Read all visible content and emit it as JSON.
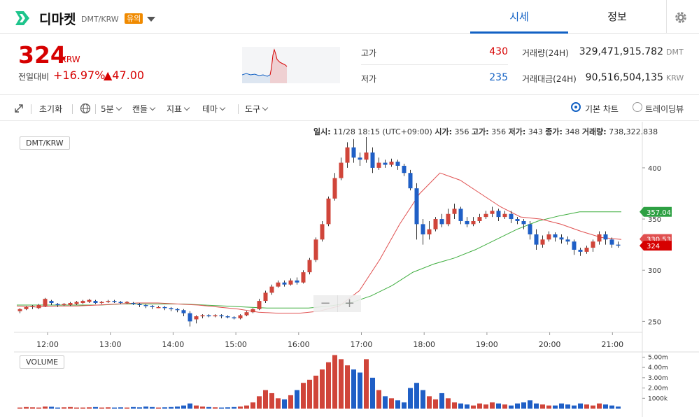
{
  "header": {
    "coin_name": "디마켓",
    "pair": "DMT/KRW",
    "warning_badge": "유의",
    "tabs": [
      {
        "label": "시세",
        "active": true
      },
      {
        "label": "정보",
        "active": false
      }
    ],
    "accent_color": "#1261c4",
    "logo_color": "#1ec48c"
  },
  "summary": {
    "price": "324",
    "price_unit": "KRW",
    "change_label": "전일대비",
    "change_pct": "+16.97%",
    "change_abs": "▲47.00",
    "high_label": "고가",
    "high_value": "430",
    "low_label": "저가",
    "low_value": "235",
    "volume_label": "거래량(24H)",
    "volume_value": "329,471,915.782",
    "volume_unit": "DMT",
    "amount_label": "거래대금(24H)",
    "amount_value": "90,516,504,135",
    "amount_unit": "KRW",
    "up_color": "#d60000",
    "down_color": "#1261c4"
  },
  "toolbar": {
    "reset": "초기화",
    "interval": "5분",
    "candle": "캔들",
    "indicator": "지표",
    "theme": "테마",
    "tools": "도구",
    "basic_chart": "기본 차트",
    "tradingview": "트레이딩뷰"
  },
  "info": {
    "date_label": "일시:",
    "date_value": "11/28 18:15 (UTC+09:00)",
    "open_label": "시가:",
    "open_value": "356",
    "high_label": "고가:",
    "high_value": "356",
    "low_label": "저가:",
    "low_value": "343",
    "close_label": "종가:",
    "close_value": "348",
    "vol_label": "거래량:",
    "vol_value": "738,322.838"
  },
  "chart_data": {
    "type": "candlestick",
    "pair_label": "DMT/KRW",
    "volume_label": "VOLUME",
    "x_ticks": [
      "12:00",
      "13:00",
      "14:00",
      "15:00",
      "16:00",
      "17:00",
      "18:00",
      "19:00",
      "20:00",
      "21:00"
    ],
    "y_ticks": [
      250,
      300,
      350,
      400
    ],
    "ylim": [
      240,
      430
    ],
    "volume_ticks": [
      "5.00m",
      "4.00m",
      "3.00m",
      "2.00m",
      "1000k"
    ],
    "volume_ylim": [
      0,
      5300000
    ],
    "price_tags": [
      {
        "label": "357.04",
        "value": 357.04,
        "color": "#2ea043"
      },
      {
        "label": "330.533",
        "value": 330.5,
        "color": "#e05050"
      },
      {
        "label": "324",
        "value": 324,
        "color": "#d60000"
      }
    ],
    "ma_fast": [
      265,
      264,
      265,
      265,
      266,
      267,
      268,
      268,
      267,
      266,
      264,
      262,
      259,
      258,
      258,
      260,
      265,
      280,
      310,
      345,
      375,
      395,
      388,
      375,
      362,
      352,
      350,
      345,
      338,
      332,
      330
    ],
    "ma_slow": [
      266,
      266,
      266,
      266,
      266,
      267,
      267,
      267,
      267,
      266,
      265,
      264,
      263,
      263,
      263,
      265,
      268,
      275,
      285,
      298,
      306,
      312,
      320,
      330,
      340,
      348,
      353,
      357,
      357
    ],
    "candles": [
      [
        260,
        262,
        258,
        263
      ],
      [
        262,
        264,
        261,
        265
      ],
      [
        264,
        265,
        262,
        266
      ],
      [
        263,
        266,
        262,
        267
      ],
      [
        265,
        272,
        264,
        273
      ],
      [
        270,
        268,
        266,
        271
      ],
      [
        267,
        266,
        264,
        268
      ],
      [
        266,
        267,
        265,
        268
      ],
      [
        266,
        268,
        265,
        269
      ],
      [
        267,
        269,
        266,
        270
      ],
      [
        268,
        270,
        267,
        271
      ],
      [
        269,
        271,
        268,
        272
      ],
      [
        270,
        268,
        267,
        271
      ],
      [
        268,
        269,
        267,
        270
      ],
      [
        269,
        270,
        268,
        271
      ],
      [
        270,
        269,
        268,
        271
      ],
      [
        269,
        268,
        267,
        270
      ],
      [
        268,
        269,
        267,
        270
      ],
      [
        268,
        267,
        266,
        269
      ],
      [
        267,
        266,
        264,
        268
      ],
      [
        266,
        265,
        263,
        267
      ],
      [
        265,
        264,
        262,
        266
      ],
      [
        264,
        264,
        263,
        265
      ],
      [
        264,
        263,
        261,
        265
      ],
      [
        263,
        262,
        260,
        264
      ],
      [
        262,
        261,
        259,
        263
      ],
      [
        261,
        258,
        255,
        262
      ],
      [
        258,
        250,
        245,
        260
      ],
      [
        252,
        255,
        248,
        256
      ],
      [
        255,
        256,
        253,
        257
      ],
      [
        256,
        255,
        254,
        257
      ],
      [
        255,
        256,
        254,
        257
      ],
      [
        256,
        255,
        253,
        257
      ],
      [
        255,
        254,
        253,
        256
      ],
      [
        254,
        253,
        252,
        255
      ],
      [
        253,
        256,
        252,
        257
      ],
      [
        256,
        259,
        255,
        260
      ],
      [
        259,
        262,
        258,
        263
      ],
      [
        262,
        270,
        261,
        272
      ],
      [
        270,
        278,
        268,
        280
      ],
      [
        278,
        284,
        276,
        286
      ],
      [
        284,
        288,
        283,
        290
      ],
      [
        288,
        286,
        284,
        290
      ],
      [
        286,
        290,
        285,
        292
      ],
      [
        290,
        288,
        286,
        293
      ],
      [
        288,
        298,
        287,
        300
      ],
      [
        298,
        310,
        296,
        312
      ],
      [
        310,
        330,
        308,
        332
      ],
      [
        330,
        345,
        328,
        348
      ],
      [
        345,
        370,
        343,
        372
      ],
      [
        370,
        390,
        368,
        395
      ],
      [
        390,
        405,
        388,
        410
      ],
      [
        405,
        420,
        400,
        425
      ],
      [
        420,
        410,
        405,
        428
      ],
      [
        410,
        408,
        402,
        415
      ],
      [
        408,
        415,
        405,
        430
      ],
      [
        415,
        400,
        395,
        420
      ],
      [
        400,
        405,
        398,
        410
      ],
      [
        405,
        403,
        400,
        408
      ],
      [
        403,
        406,
        401,
        409
      ],
      [
        406,
        402,
        398,
        408
      ],
      [
        402,
        395,
        392,
        404
      ],
      [
        395,
        380,
        378,
        398
      ],
      [
        380,
        345,
        330,
        385
      ],
      [
        345,
        335,
        325,
        350
      ],
      [
        335,
        340,
        330,
        348
      ],
      [
        340,
        350,
        338,
        352
      ],
      [
        350,
        345,
        342,
        355
      ],
      [
        345,
        355,
        343,
        360
      ],
      [
        355,
        360,
        350,
        365
      ],
      [
        360,
        348,
        345,
        362
      ],
      [
        348,
        345,
        342,
        352
      ],
      [
        345,
        348,
        343,
        352
      ],
      [
        348,
        352,
        346,
        355
      ],
      [
        352,
        355,
        350,
        358
      ],
      [
        355,
        358,
        352,
        362
      ],
      [
        358,
        352,
        348,
        360
      ],
      [
        352,
        355,
        350,
        358
      ],
      [
        355,
        350,
        346,
        358
      ],
      [
        350,
        348,
        345,
        352
      ],
      [
        348,
        345,
        340,
        350
      ],
      [
        345,
        335,
        330,
        348
      ],
      [
        335,
        325,
        320,
        340
      ],
      [
        325,
        330,
        322,
        334
      ],
      [
        330,
        335,
        328,
        338
      ],
      [
        335,
        332,
        328,
        337
      ],
      [
        332,
        330,
        326,
        335
      ],
      [
        330,
        328,
        325,
        333
      ],
      [
        328,
        320,
        315,
        330
      ],
      [
        320,
        318,
        314,
        322
      ],
      [
        318,
        322,
        316,
        324
      ],
      [
        322,
        328,
        318,
        330
      ],
      [
        328,
        335,
        325,
        338
      ],
      [
        335,
        330,
        325,
        338
      ],
      [
        330,
        325,
        322,
        332
      ],
      [
        325,
        324,
        322,
        328
      ]
    ],
    "volumes": [
      0.1,
      0.15,
      0.12,
      0.1,
      0.2,
      0.18,
      0.1,
      0.12,
      0.15,
      0.1,
      0.1,
      0.12,
      0.15,
      0.1,
      0.12,
      0.1,
      0.12,
      0.1,
      0.15,
      0.12,
      0.2,
      0.15,
      0.1,
      0.12,
      0.15,
      0.2,
      0.3,
      0.5,
      0.3,
      0.2,
      0.15,
      0.12,
      0.1,
      0.12,
      0.15,
      0.2,
      0.3,
      0.6,
      1.2,
      1.8,
      1.5,
      1.0,
      0.9,
      1.3,
      1.8,
      2.5,
      2.8,
      3.2,
      3.8,
      4.5,
      5.2,
      4.8,
      4.2,
      3.8,
      3.5,
      4.8,
      3.0,
      1.8,
      1.2,
      1.0,
      0.8,
      0.6,
      2.0,
      2.5,
      1.8,
      1.2,
      0.9,
      1.5,
      1.0,
      0.6,
      0.5,
      0.4,
      0.3,
      0.5,
      0.4,
      0.6,
      0.5,
      0.4,
      0.3,
      0.5,
      0.6,
      0.8,
      0.5,
      0.4,
      0.3,
      0.3,
      0.5,
      0.4,
      0.3,
      0.5,
      0.4,
      0.3,
      0.5,
      0.4,
      0.3,
      0.2
    ]
  }
}
